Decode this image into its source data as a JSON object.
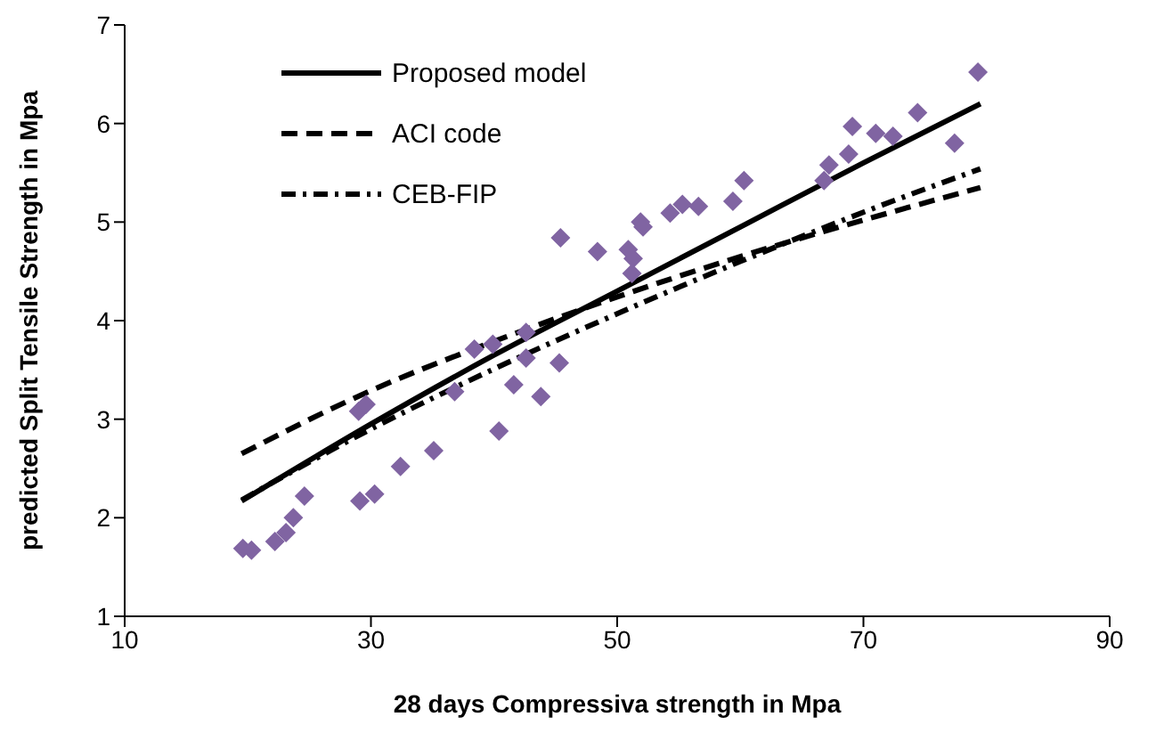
{
  "chart_data": {
    "type": "scatter",
    "xlabel": "28 days Compressiva strength in Mpa",
    "ylabel": "predicted Split Tensile Strength in Mpa",
    "xlim": [
      10,
      90
    ],
    "xticks": [
      10,
      30,
      50,
      70,
      90
    ],
    "ylim": [
      1,
      7
    ],
    "yticks": [
      1,
      2,
      3,
      4,
      5,
      6,
      7
    ],
    "grid": false,
    "legend": "top left",
    "series": [
      {
        "color": "#8064a2",
        "marker": "diamond",
        "x": [
          19.6,
          20.3,
          22.2,
          23.1,
          23.7,
          24.6,
          29.1,
          30.3,
          32.4,
          35.1,
          29.0,
          29.6,
          36.8,
          40.4,
          41.6,
          43.8,
          45.3,
          42.6,
          42.6,
          38.4,
          39.9,
          45.4,
          48.4,
          50.9,
          51.3,
          51.2,
          51.9,
          52.1,
          54.3,
          55.3,
          56.6,
          59.4,
          60.3,
          66.8,
          67.2,
          68.8,
          69.1,
          71.0,
          72.4,
          74.4,
          77.4,
          79.3
        ],
        "values": [
          1.69,
          1.67,
          1.76,
          1.85,
          2.0,
          2.22,
          2.17,
          2.24,
          2.52,
          2.68,
          3.08,
          3.15,
          3.28,
          2.88,
          3.35,
          3.23,
          3.57,
          3.62,
          3.88,
          3.71,
          3.76,
          4.84,
          4.7,
          4.72,
          4.63,
          4.48,
          5.0,
          4.95,
          5.09,
          5.18,
          5.16,
          5.21,
          5.42,
          5.42,
          5.58,
          5.69,
          5.97,
          5.9,
          5.87,
          6.11,
          5.8,
          6.52
        ]
      },
      {
        "type": "line",
        "name": "Proposed model",
        "color": "#000000",
        "line_style": "solid",
        "x": [
          19.5,
          30,
          40,
          50,
          60,
          70,
          79.5
        ],
        "values": [
          2.17,
          2.95,
          3.65,
          4.3,
          4.95,
          5.6,
          6.2
        ]
      },
      {
        "type": "line",
        "name": "ACI code",
        "color": "#000000",
        "line_style": "dashed",
        "x": [
          19.5,
          30,
          40,
          50,
          60,
          70,
          79.5
        ],
        "values": [
          2.65,
          3.29,
          3.79,
          4.24,
          4.65,
          5.02,
          5.35
        ]
      },
      {
        "type": "line",
        "name": "CEB-FIP",
        "color": "#000000",
        "line_style": "dashdot",
        "x": [
          19.5,
          30,
          40,
          50,
          60,
          70,
          79.5
        ],
        "values": [
          2.18,
          2.9,
          3.51,
          4.07,
          4.6,
          5.1,
          5.54
        ]
      }
    ]
  }
}
